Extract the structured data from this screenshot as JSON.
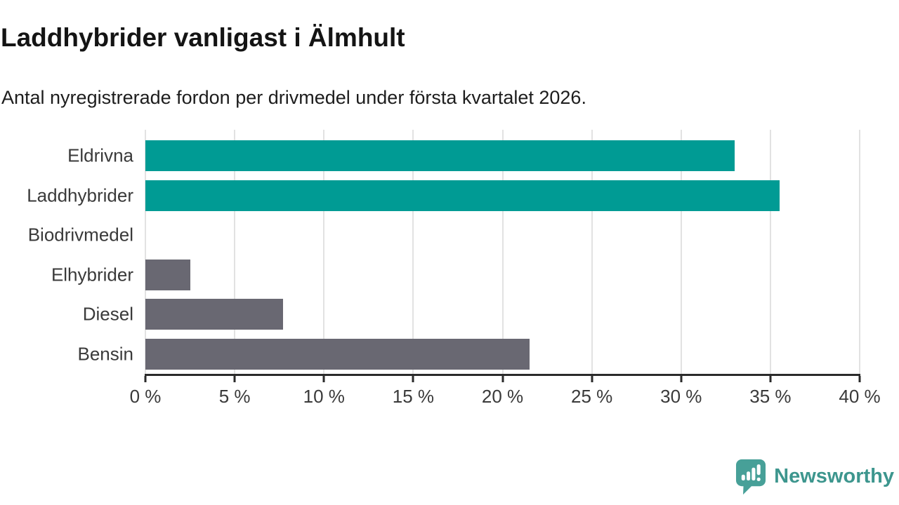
{
  "page": {
    "title": "Laddhybrider vanligast i Älmhult",
    "subtitle": "Antal nyregistrerade fordon per drivmedel under första kvartalet 2026."
  },
  "chart_data": {
    "type": "bar",
    "orientation": "horizontal",
    "title": "Laddhybrider vanligast i Älmhult",
    "subtitle": "Antal nyregistrerade fordon per drivmedel under första kvartalet 2026.",
    "categories": [
      "Eldrivna",
      "Laddhybrider",
      "Biodrivmedel",
      "Elhybrider",
      "Diesel",
      "Bensin"
    ],
    "values": [
      33,
      35.5,
      0,
      2.5,
      7.7,
      21.5
    ],
    "unit": "%",
    "bar_colors": [
      "#009b94",
      "#009b94",
      "#696872",
      "#696872",
      "#696872",
      "#696872"
    ],
    "accent_color": "#009b94",
    "neutral_color": "#696872",
    "xlabel": "",
    "ylabel": "",
    "xlim": [
      0,
      40
    ],
    "x_ticks": [
      0,
      5,
      10,
      15,
      20,
      25,
      30,
      35,
      40
    ],
    "x_tick_labels": [
      "0 %",
      "5 %",
      "10 %",
      "15 %",
      "20 %",
      "25 %",
      "30 %",
      "35 %",
      "40 %"
    ],
    "grid": "vertical-only",
    "legend": "none"
  },
  "footer": {
    "brand": "Newsworthy",
    "brand_color": "#3d968e",
    "icon_color": "#47a098",
    "logo_icon": "bar-chart-speech-bubble"
  }
}
